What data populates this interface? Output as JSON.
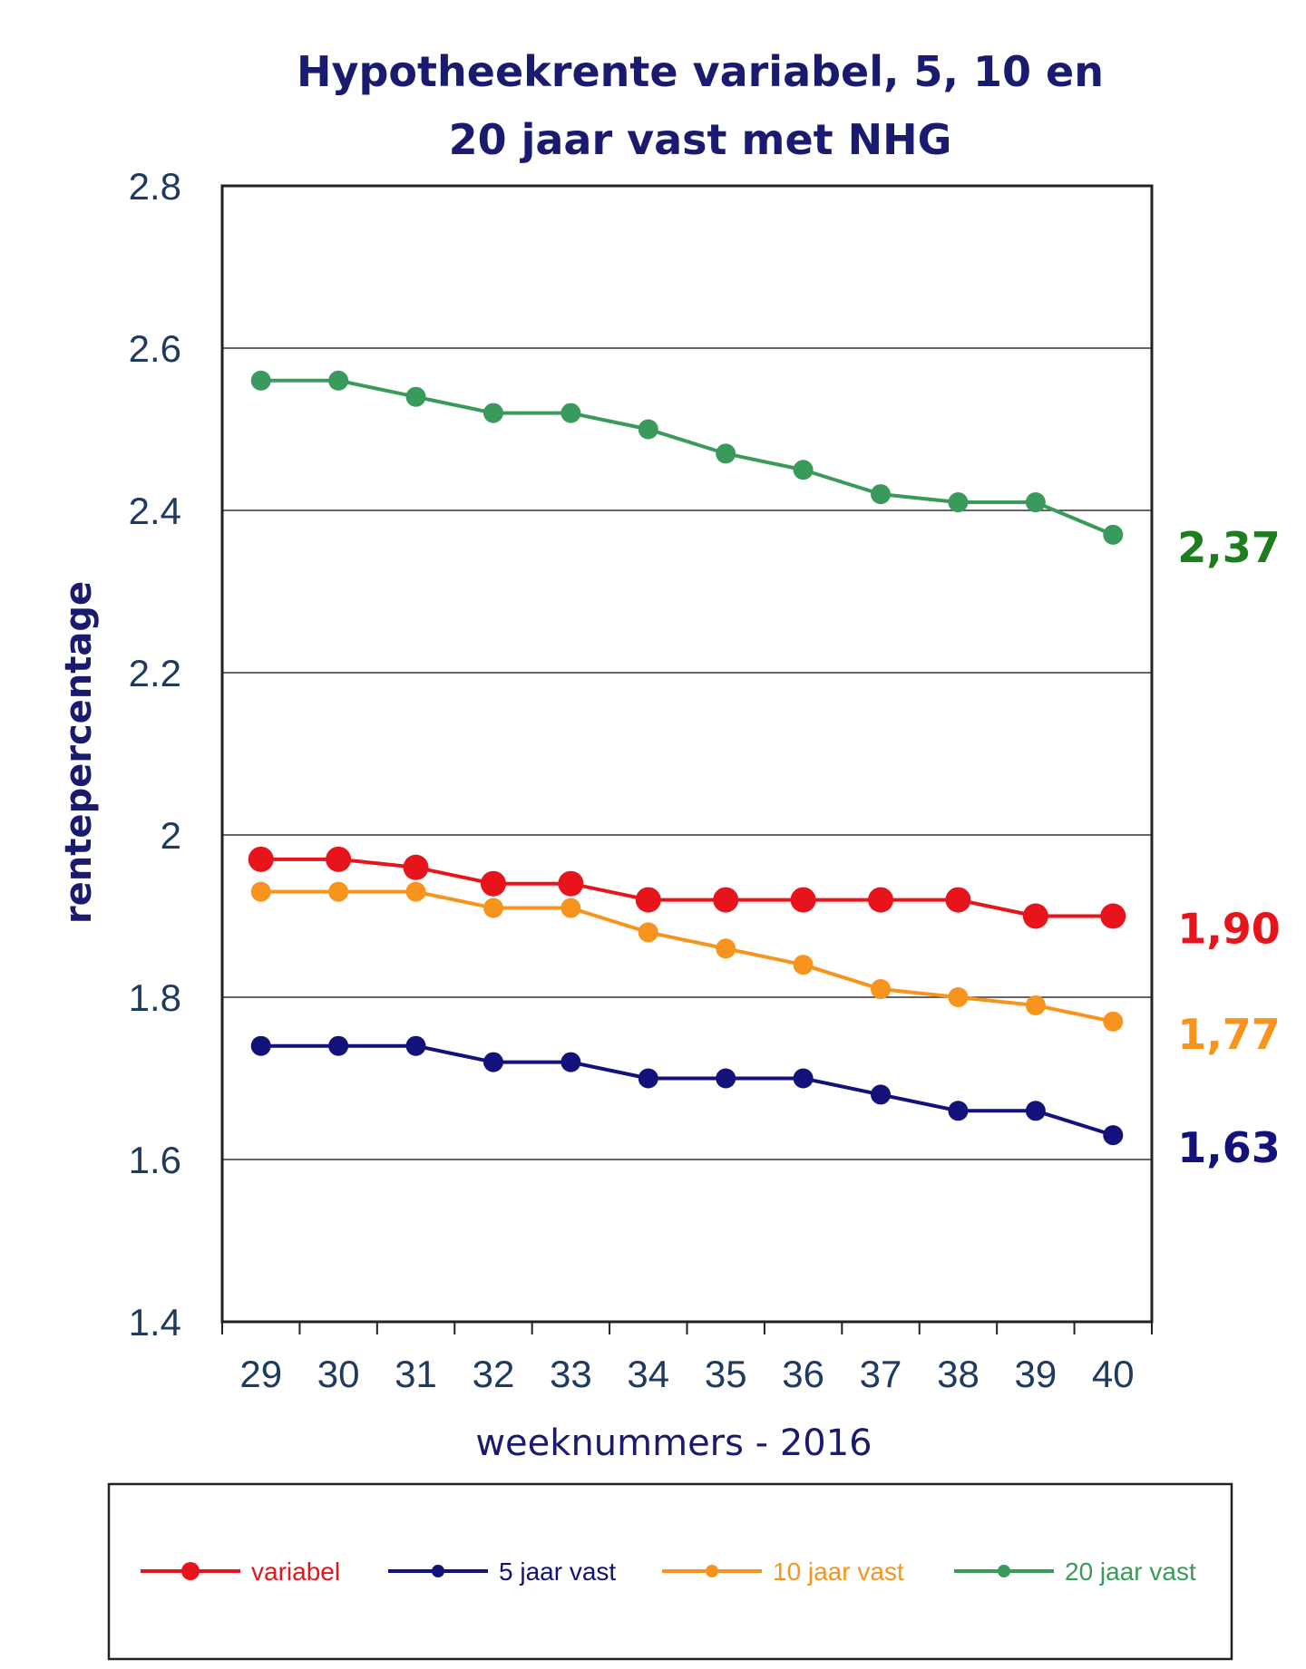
{
  "chart_data": {
    "type": "line",
    "title_lines": [
      "Hypotheekrente variabel, 5, 10 en",
      "20 jaar vast met NHG"
    ],
    "xlabel": "weeknummers - 2016",
    "ylabel": "rentepercentage",
    "ylim": [
      1.4,
      2.8
    ],
    "yticks": [
      "1.4",
      "1.6",
      "1.8",
      "2",
      "2.2",
      "2.4",
      "2.6",
      "2.8"
    ],
    "ytick_values": [
      1.4,
      1.6,
      1.8,
      2.0,
      2.2,
      2.4,
      2.6,
      2.8
    ],
    "categories": [
      "29",
      "30",
      "31",
      "32",
      "33",
      "34",
      "35",
      "36",
      "37",
      "38",
      "39",
      "40"
    ],
    "grid": true,
    "legend_position": "bottom",
    "series": [
      {
        "name": "variabel",
        "color": "#e8141b",
        "marker": "large",
        "values": [
          1.97,
          1.97,
          1.96,
          1.94,
          1.94,
          1.92,
          1.92,
          1.92,
          1.92,
          1.92,
          1.9,
          1.9
        ],
        "end_label": "1,90"
      },
      {
        "name": "5 jaar vast",
        "color": "#12127a",
        "marker": "medium",
        "values": [
          1.74,
          1.74,
          1.74,
          1.72,
          1.72,
          1.7,
          1.7,
          1.7,
          1.68,
          1.66,
          1.66,
          1.63
        ],
        "end_label": "1,63"
      },
      {
        "name": "10 jaar vast",
        "color": "#f7941d",
        "marker": "medium",
        "values": [
          1.93,
          1.93,
          1.93,
          1.91,
          1.91,
          1.88,
          1.86,
          1.84,
          1.81,
          1.8,
          1.79,
          1.77
        ],
        "end_label": "1,77"
      },
      {
        "name": "20 jaar vast",
        "color": "#3a9a5b",
        "marker": "medium",
        "values": [
          2.56,
          2.56,
          2.54,
          2.52,
          2.52,
          2.5,
          2.47,
          2.45,
          2.42,
          2.41,
          2.41,
          2.37
        ],
        "end_label": "2,37",
        "end_label_color": "#1e7d1e"
      }
    ]
  }
}
